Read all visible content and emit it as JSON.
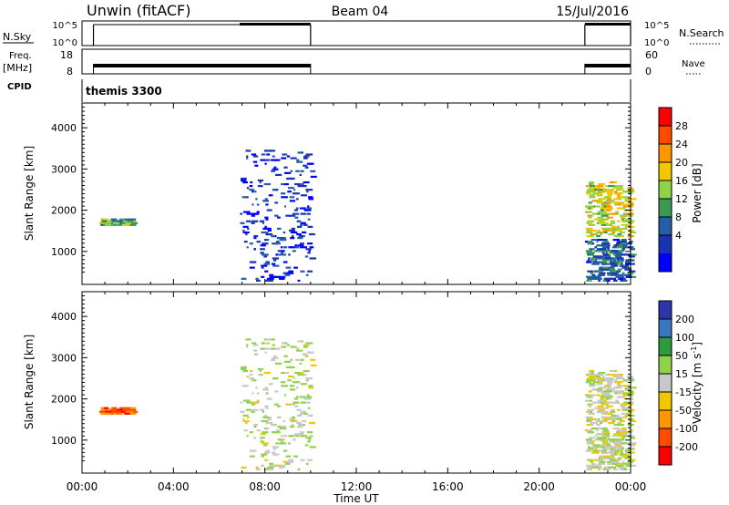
{
  "header": {
    "station": "Unwin (fitACF)",
    "beam": "Beam 04",
    "date": "15/Jul/2016"
  },
  "cpid": {
    "label": "CPID",
    "name": "themis 3300"
  },
  "params": {
    "nsky_label": "N.Sky",
    "nsky_ticks": [
      "10^5",
      "10^0"
    ],
    "nsearch_label": "N.Search",
    "nsearch_ticks": [
      "10^5",
      "10^0"
    ],
    "freq_label": "Freq.",
    "freq_unit": "[MHz]",
    "freq_ticks": [
      "18",
      "8"
    ],
    "nave_label": "Nave",
    "nave_ticks": [
      "60",
      "0"
    ]
  },
  "power_panel": {
    "ylabel": "Slant Range [km]",
    "yticks": [
      "4000",
      "3000",
      "2000",
      "1000"
    ],
    "colorbar_label": "Power [dB]",
    "colorbar_ticks": [
      "28",
      "24",
      "20",
      "16",
      "12",
      "8",
      "4"
    ],
    "colorbar_colors": [
      "#ff0000",
      "#ff4a00",
      "#ff9600",
      "#f0c800",
      "#8ed348",
      "#3a9a52",
      "#235ea6",
      "#1a33b5",
      "#0000ff"
    ]
  },
  "velocity_panel": {
    "ylabel": "Slant Range [km]",
    "yticks": [
      "4000",
      "3000",
      "2000",
      "1000"
    ],
    "colorbar_label": "Velocity [m s",
    "colorbar_unit_sup": "-1",
    "colorbar_label_end": "]",
    "colorbar_ticks": [
      "200",
      "100",
      "50",
      "15",
      "-15",
      "-50",
      "-100",
      "-200"
    ],
    "colorbar_colors": [
      "#2f35a9",
      "#3876c0",
      "#2e9a3c",
      "#8ed348",
      "#c8c8c8",
      "#f0c800",
      "#ff9600",
      "#ff4a00",
      "#ff0000"
    ]
  },
  "xaxis": {
    "label": "Time UT",
    "ticks": [
      "00:00",
      "04:00",
      "08:00",
      "12:00",
      "16:00",
      "20:00",
      "00:00"
    ]
  },
  "chart_data": {
    "type": "heatmap",
    "title": "Unwin (fitACF) Beam 04 15/Jul/2016",
    "xlabel": "Time UT",
    "ylabel": "Slant Range [km]",
    "x_range_hours": [
      0,
      24
    ],
    "y_range_km": [
      200,
      4600
    ],
    "power_range_db": [
      0,
      32
    ],
    "velocity_range_ms": [
      -250,
      250
    ],
    "operating_periods_hours": [
      [
        0.5,
        10.0
      ],
      [
        22.0,
        24.0
      ]
    ],
    "nsky_high_hours": [
      [
        6.9,
        10.0
      ],
      [
        22.0,
        24.0
      ]
    ],
    "echo_regions": [
      {
        "t0": 0.75,
        "t1": 2.2,
        "r0": 1650,
        "r1": 1800,
        "power": 14,
        "velocity": -150
      },
      {
        "t0": 6.9,
        "t1": 10.0,
        "r0": 300,
        "r1": 3500,
        "power": 5,
        "velocity": 20
      },
      {
        "t0": 22.0,
        "t1": 24.0,
        "r0": 1400,
        "r1": 2700,
        "power": 18,
        "velocity": 0
      },
      {
        "t0": 22.0,
        "t1": 24.0,
        "r0": 300,
        "r1": 1300,
        "power": 8,
        "velocity": 10
      }
    ]
  }
}
